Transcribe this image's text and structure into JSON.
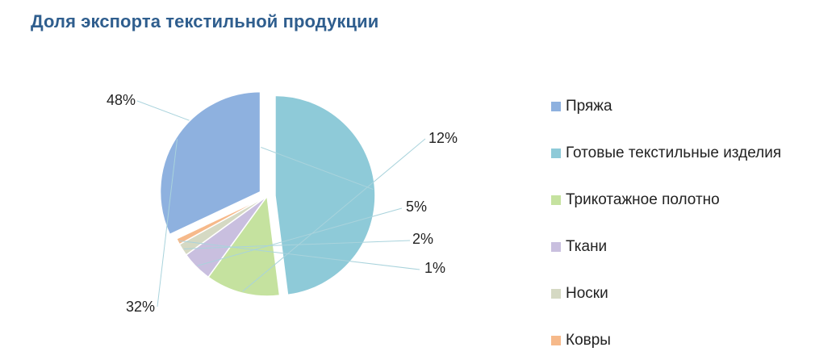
{
  "chart_data": {
    "type": "pie",
    "title": "Доля экспорта текстильной продукции",
    "slices": [
      {
        "name": "Пряжа",
        "value": 32,
        "label": "32%",
        "color": "#8eb1df"
      },
      {
        "name": "Готовые текстильные изделия",
        "value": 48,
        "label": "48%",
        "color": "#8ecad8"
      },
      {
        "name": "Трикотажное полотно",
        "value": 12,
        "label": "12%",
        "color": "#c5e29f"
      },
      {
        "name": "Ткани",
        "value": 5,
        "label": "5%",
        "color": "#c9bfdf"
      },
      {
        "name": "Носки",
        "value": 2,
        "label": "2%",
        "color": "#d5d9c3"
      },
      {
        "name": "Ковры",
        "value": 1,
        "label": "1%",
        "color": "#f6b98a"
      }
    ],
    "legend_position": "right"
  },
  "legend": {
    "items": [
      {
        "label": "Пряжа",
        "color": "#8eb1df"
      },
      {
        "label": "Готовые текстильные изделия",
        "color": "#8ecad8"
      },
      {
        "label": "Трикотажное полотно",
        "color": "#c5e29f"
      },
      {
        "label": "Ткани",
        "color": "#c9bfdf"
      },
      {
        "label": "Носки",
        "color": "#d5d9c3"
      },
      {
        "label": "Ковры",
        "color": "#f6b98a"
      }
    ]
  },
  "colors": {
    "title": "#2f5e8e",
    "leader_line": "#a9d3dc"
  }
}
